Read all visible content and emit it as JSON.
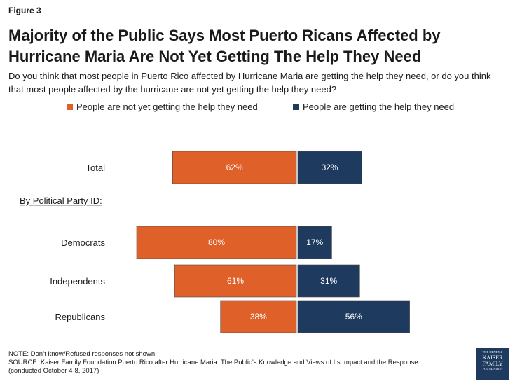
{
  "figure_label": "Figure 3",
  "title": "Majority of the Public Says Most Puerto Ricans Affected by Hurricane Maria Are Not Yet Getting The Help They Need",
  "subtitle": "Do you think that most people in Puerto Rico affected by Hurricane Maria are getting the help they need, or do you think that most people affected by the hurricane are not yet getting the help they need?",
  "note": "NOTE: Don’t know/Refused responses not shown.",
  "source": "SOURCE: Kaiser Family Foundation Puerto Rico after Hurricane Maria: The Public’s Knowledge and Views of Its Impact and the Response",
  "source_dates": "(conducted October 4-8, 2017)",
  "logo": {
    "line1": "THE HENRY J.",
    "line2": "KAISER",
    "line3": "FAMILY",
    "line4": "FOUNDATION"
  },
  "chart_data": {
    "type": "bar",
    "orientation": "horizontal-diverging",
    "group_label": "By Political Party ID:",
    "categories": [
      "Total",
      "Democrats",
      "Independents",
      "Republicans"
    ],
    "series": [
      {
        "name": "People are not yet getting the help they need",
        "color": "#e0602a",
        "values": [
          62,
          80,
          61,
          38
        ]
      },
      {
        "name": "People are getting the help they need",
        "color": "#1f3a5f",
        "values": [
          32,
          17,
          31,
          56
        ]
      }
    ],
    "value_suffix": "%",
    "legend_position": "top",
    "grid": false
  }
}
